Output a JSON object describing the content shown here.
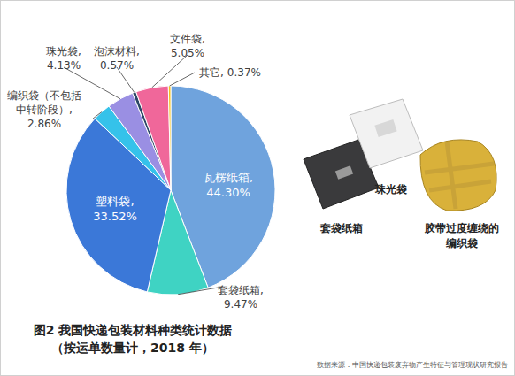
{
  "chart_data": {
    "type": "pie",
    "title": "图2 我国快递包装材料种类统计数据",
    "subtitle": "（按运单数量计，2018 年）",
    "categories": [
      "瓦楞纸箱,",
      "套袋纸箱,",
      "塑料袋,",
      "编织袋（不包括中转阶段）,",
      "珠光袋,",
      "泡沫材料,",
      "文件袋,",
      "其它,"
    ],
    "values": [
      44.3,
      9.47,
      33.52,
      2.86,
      4.13,
      0.57,
      5.05,
      0.37
    ],
    "value_labels": [
      "44.30%",
      "9.47%",
      "33.52%",
      "2.86%",
      "4.13%",
      "0.57%",
      "5.05%",
      "0.37%"
    ],
    "colors": [
      "#6fa3dd",
      "#3fd3c3",
      "#3b78d8",
      "#35c2ea",
      "#9a8fe3",
      "#2c4766",
      "#f0679a",
      "#f4c21b"
    ],
    "data_labels": true,
    "annotations": [
      "套袋纸箱",
      "珠光袋",
      "胶带过度缠绕的编织袋"
    ],
    "source": "数据来源：中国快递包装废弃物产生特征与管理现状研究报告"
  }
}
